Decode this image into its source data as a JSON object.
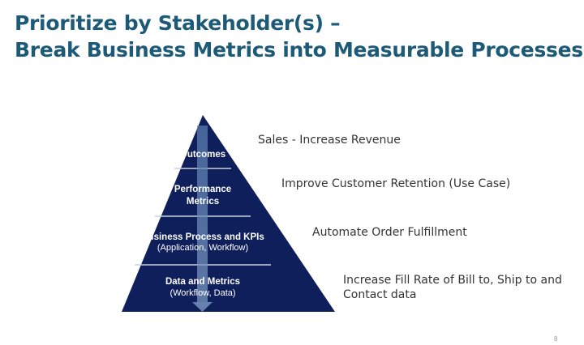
{
  "title": {
    "line1": "Prioritize by Stakeholder(s) –",
    "line2": "Break Business Metrics into Measurable Processes"
  },
  "pyramid": {
    "color": "#0f1f5c",
    "levels": [
      {
        "label": "Outcomes",
        "sub": ""
      },
      {
        "label": "Performance",
        "label2": "Metrics",
        "sub": ""
      },
      {
        "label": "Business Process and KPIs",
        "sub": "(Application, Workflow)"
      },
      {
        "label": "Data and Metrics",
        "sub": "(Workflow, Data)"
      }
    ]
  },
  "examples": [
    "Sales - Increase Revenue",
    "Improve Customer Retention (Use Case)",
    "Automate Order Fulfillment",
    "Increase Fill Rate of Bill to, Ship to and",
    "Contact data"
  ],
  "page_number": "8"
}
